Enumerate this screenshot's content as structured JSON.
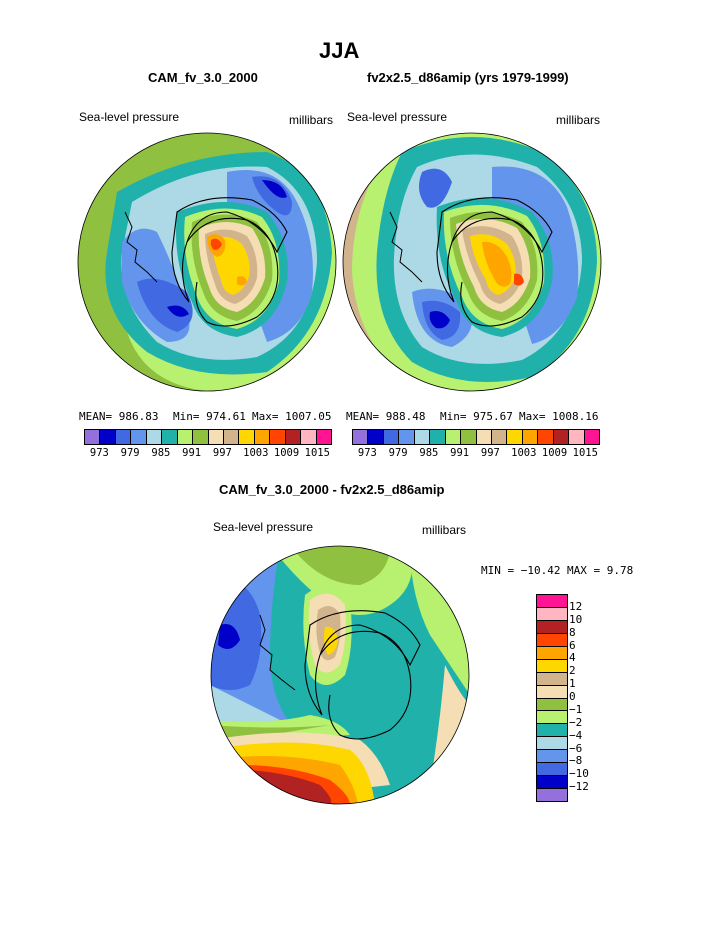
{
  "page": {
    "title": "JJA"
  },
  "panels": {
    "left": {
      "title": "CAM_fv_3.0_2000",
      "variable": "Sea-level pressure",
      "units": "millibars",
      "stats": {
        "mean": "MEAN= 986.83",
        "min": "Min= 974.61",
        "max": "Max= 1007.05"
      }
    },
    "right": {
      "title": "fv2x2.5_d86amip (yrs 1979-1999)",
      "variable": "Sea-level pressure",
      "units": "millibars",
      "stats": {
        "mean": "MEAN= 988.48",
        "min": "Min= 975.67",
        "max": "Max= 1008.16"
      }
    },
    "diff": {
      "title": "CAM_fv_3.0_2000 - fv2x2.5_d86amip",
      "variable": "Sea-level pressure",
      "units": "millibars",
      "stats": {
        "min": "MIN = −10.42",
        "max": "MAX =   9.78"
      }
    }
  },
  "colorbar_abs": {
    "colors": [
      "#9370db",
      "#0000c8",
      "#4169e1",
      "#6495ed",
      "#add8e6",
      "#20b2aa",
      "#b8f070",
      "#90c040",
      "#f5deb3",
      "#d2b48c",
      "#ffd700",
      "#ffa500",
      "#ff4500",
      "#b22222",
      "#ffb6c1",
      "#ff1493"
    ],
    "labels": [
      "973",
      "979",
      "985",
      "991",
      "997",
      "1003",
      "1009",
      "1015"
    ]
  },
  "colorbar_diff": {
    "colors": [
      "#ff1493",
      "#ffb6c1",
      "#b22222",
      "#ff4500",
      "#ffa500",
      "#ffd700",
      "#d2b48c",
      "#f5deb3",
      "#90c040",
      "#b8f070",
      "#20b2aa",
      "#add8e6",
      "#6495ed",
      "#4169e1",
      "#0000c8",
      "#9370db"
    ],
    "labels": [
      "12",
      "10",
      "8",
      "6",
      "4",
      "2",
      "1",
      "0",
      "−1",
      "−2",
      "−4",
      "−6",
      "−8",
      "−10",
      "−12"
    ]
  },
  "map_colors": {
    "purple": "#9370db",
    "dkblue": "#0000c8",
    "royal": "#4169e1",
    "cornflower": "#6495ed",
    "lightblue": "#add8e6",
    "teal": "#20b2aa",
    "lightgreen": "#b8f070",
    "green": "#90c040",
    "wheat": "#f5deb3",
    "tan": "#d2b48c",
    "gold": "#ffd700",
    "orange": "#ffa500",
    "red": "#ff4500",
    "firebrick": "#b22222",
    "pink": "#ffb6c1",
    "magenta": "#ff1493"
  }
}
